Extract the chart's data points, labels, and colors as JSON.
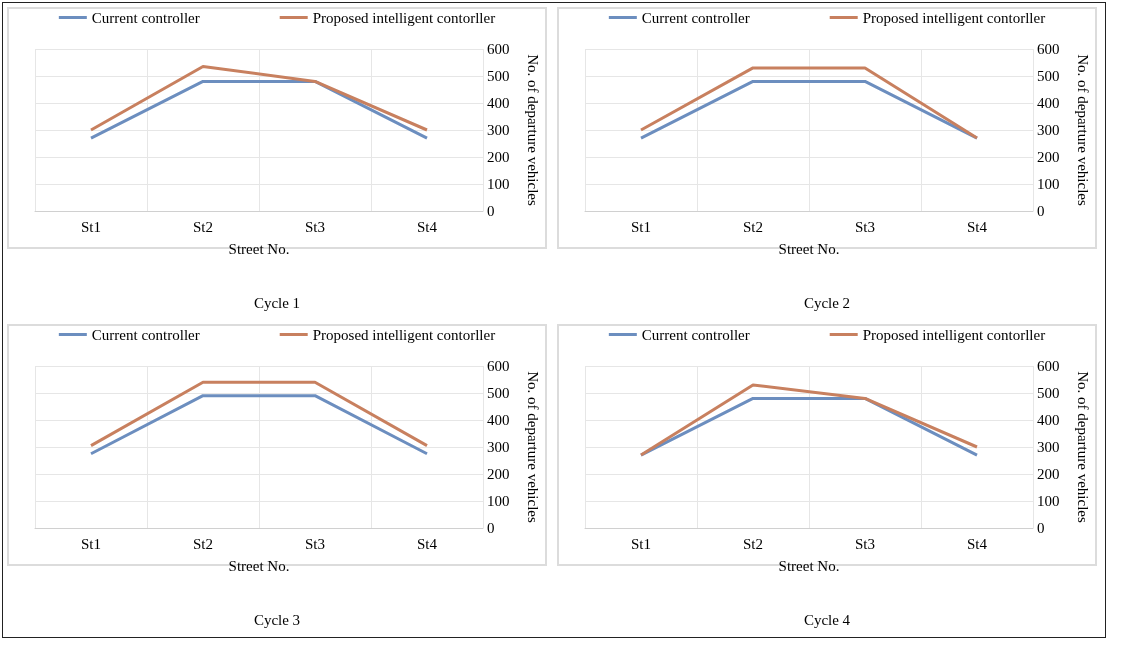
{
  "chart_data": [
    {
      "type": "line",
      "title": "Cycle 1",
      "xlabel": "Street No.",
      "ylabel": "No. of departure vehicles",
      "categories": [
        "St1",
        "St2",
        "St3",
        "St4"
      ],
      "ylim": [
        0,
        600
      ],
      "yticks": [
        0,
        100,
        200,
        300,
        400,
        500,
        600
      ],
      "grid": true,
      "legend": "top",
      "marker": "none",
      "series": [
        {
          "name": "Current controller",
          "color": "#6c8ebf",
          "values": [
            270,
            480,
            480,
            270
          ]
        },
        {
          "name": "Proposed intelligent contorller",
          "color": "#c8805f",
          "values": [
            300,
            535,
            480,
            300
          ]
        }
      ]
    },
    {
      "type": "line",
      "title": "Cycle 2",
      "xlabel": "Street No.",
      "ylabel": "No. of departure vehicles",
      "categories": [
        "St1",
        "St2",
        "St3",
        "St4"
      ],
      "ylim": [
        0,
        600
      ],
      "yticks": [
        0,
        100,
        200,
        300,
        400,
        500,
        600
      ],
      "grid": true,
      "legend": "top",
      "marker": "none",
      "series": [
        {
          "name": "Current controller",
          "color": "#6c8ebf",
          "values": [
            270,
            480,
            480,
            270
          ]
        },
        {
          "name": "Proposed intelligent contorller",
          "color": "#c8805f",
          "values": [
            300,
            530,
            530,
            270
          ]
        }
      ]
    },
    {
      "type": "line",
      "title": "Cycle 3",
      "xlabel": "Street No.",
      "ylabel": "No. of departure vehicles",
      "categories": [
        "St1",
        "St2",
        "St3",
        "St4"
      ],
      "ylim": [
        0,
        600
      ],
      "yticks": [
        0,
        100,
        200,
        300,
        400,
        500,
        600
      ],
      "grid": true,
      "legend": "top",
      "marker": "none",
      "series": [
        {
          "name": "Current controller",
          "color": "#6c8ebf",
          "values": [
            275,
            490,
            490,
            275
          ]
        },
        {
          "name": "Proposed intelligent contorller",
          "color": "#c8805f",
          "values": [
            305,
            540,
            540,
            305
          ]
        }
      ]
    },
    {
      "type": "line",
      "title": "Cycle 4",
      "xlabel": "Street No.",
      "ylabel": "No. of departure vehicles",
      "categories": [
        "St1",
        "St2",
        "St3",
        "St4"
      ],
      "ylim": [
        0,
        600
      ],
      "yticks": [
        0,
        100,
        200,
        300,
        400,
        500,
        600
      ],
      "grid": true,
      "legend": "top",
      "marker": "none",
      "series": [
        {
          "name": "Current controller",
          "color": "#6c8ebf",
          "values": [
            270,
            480,
            480,
            270
          ]
        },
        {
          "name": "Proposed intelligent contorller",
          "color": "#c8805f",
          "values": [
            270,
            530,
            480,
            300
          ]
        }
      ]
    }
  ]
}
